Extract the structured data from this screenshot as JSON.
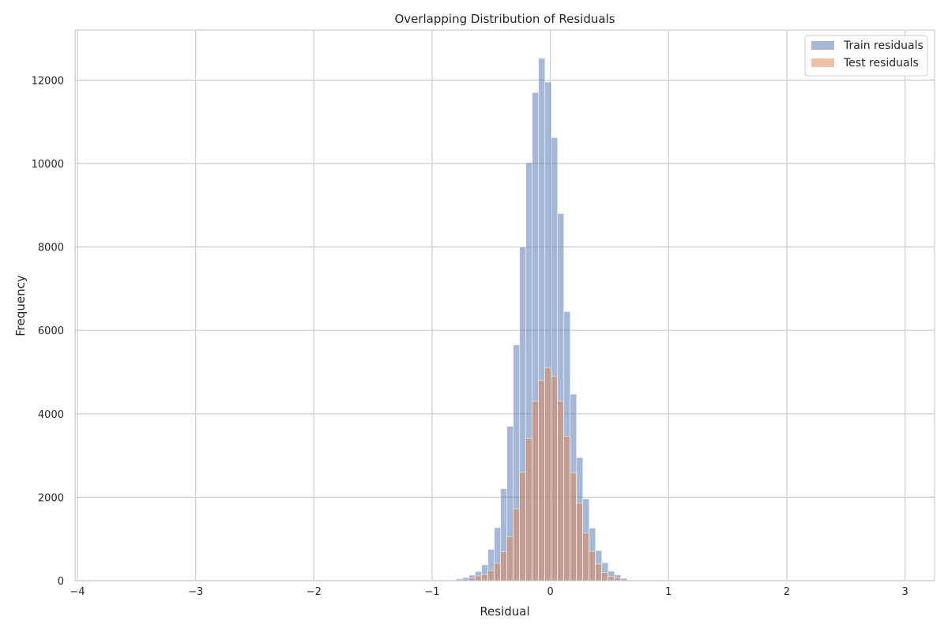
{
  "chart_data": {
    "type": "histogram",
    "title": "Overlapping Distribution of Residuals",
    "xlabel": "Residual",
    "ylabel": "Frequency",
    "xlim": [
      -4.02,
      3.25
    ],
    "ylim": [
      0,
      13200
    ],
    "x_ticks": [
      -4,
      -3,
      -2,
      -1,
      0,
      1,
      2,
      3
    ],
    "x_tick_labels": [
      "−4",
      "−3",
      "−2",
      "−1",
      "0",
      "1",
      "2",
      "3"
    ],
    "y_ticks": [
      0,
      2000,
      4000,
      6000,
      8000,
      10000,
      12000
    ],
    "y_tick_labels": [
      "0",
      "2000",
      "4000",
      "6000",
      "8000",
      "10000",
      "12000"
    ],
    "grid": true,
    "legend_position": "top-right",
    "series": [
      {
        "name": "Train residuals",
        "color": "#4c72b0",
        "opacity": 0.5,
        "bin_start": -0.795,
        "bin_width": 0.0535,
        "values": [
          40,
          75,
          130,
          220,
          380,
          750,
          1270,
          2200,
          3700,
          5650,
          8000,
          10020,
          11700,
          12520,
          11950,
          10620,
          8800,
          6450,
          4470,
          2950,
          1960,
          1260,
          720,
          430,
          230,
          140,
          55,
          20
        ]
      },
      {
        "name": "Test residuals",
        "color": "#dd8452",
        "opacity": 0.5,
        "bin_start": -0.69,
        "bin_width": 0.0535,
        "values": [
          60,
          110,
          150,
          240,
          420,
          690,
          1050,
          1720,
          2600,
          3400,
          4300,
          4800,
          5100,
          4900,
          4300,
          3460,
          2580,
          1860,
          1140,
          700,
          400,
          200,
          100,
          70
        ]
      }
    ]
  }
}
